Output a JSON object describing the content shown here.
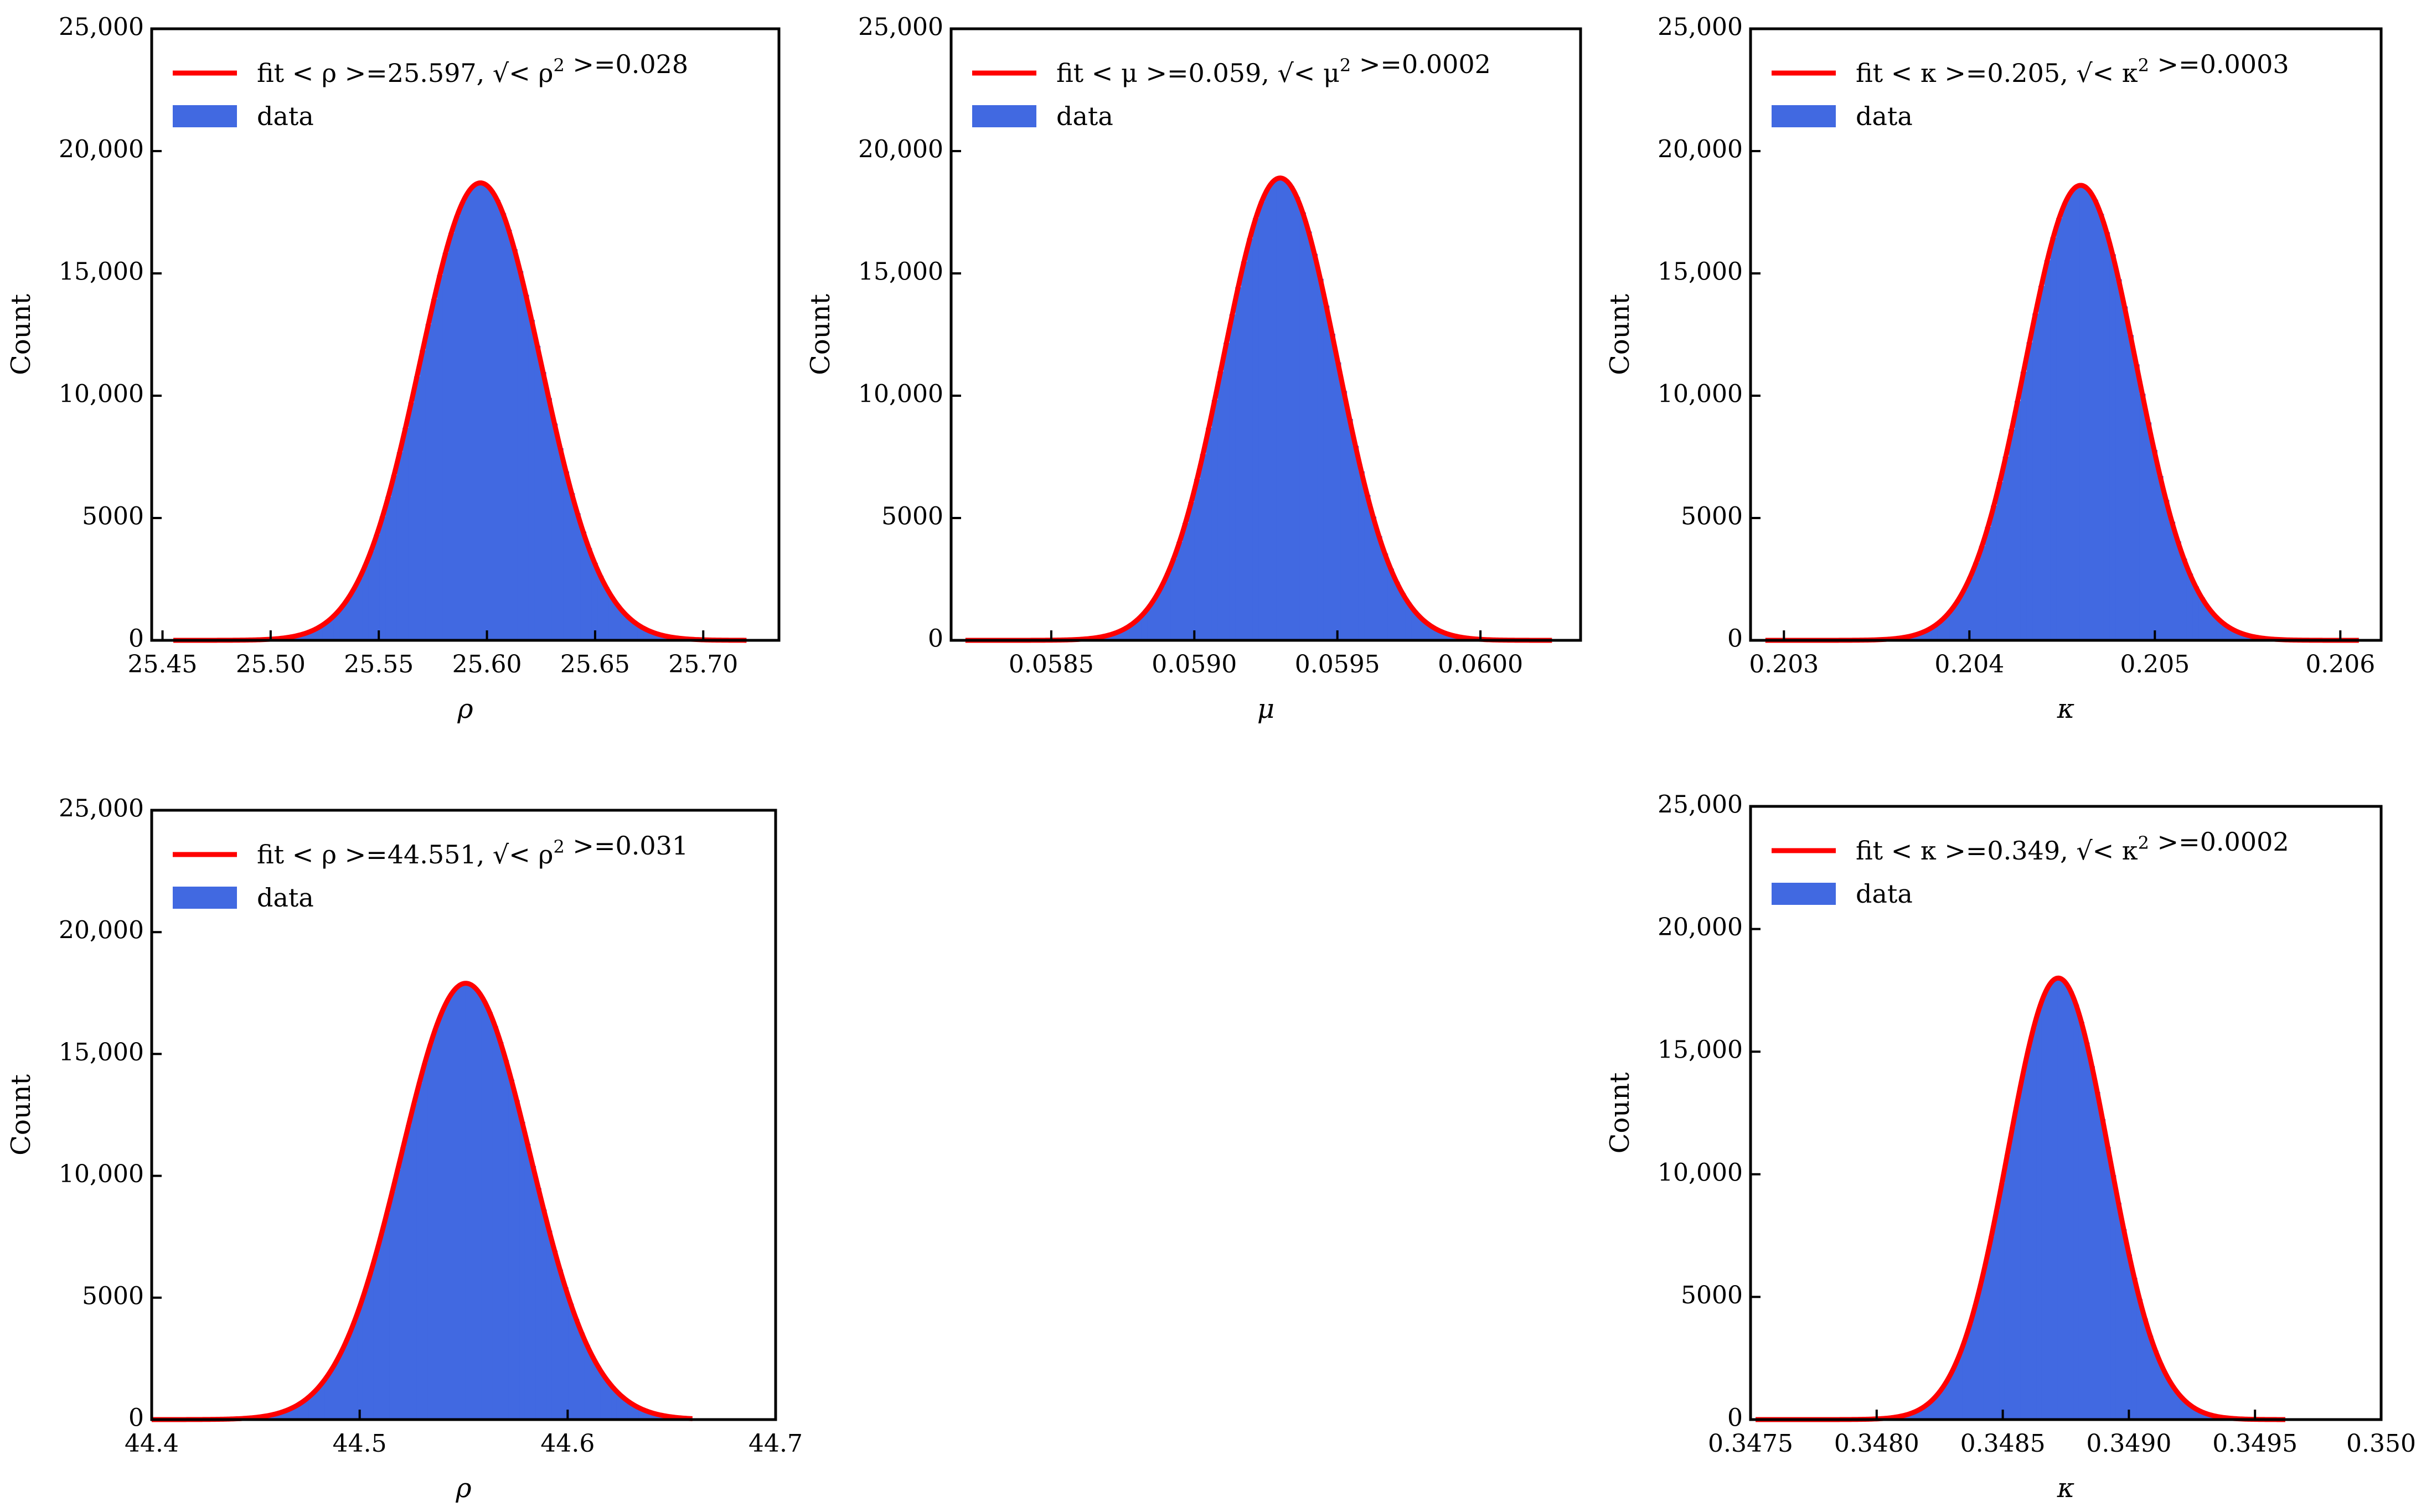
{
  "chart_data": [
    {
      "type": "bar",
      "xlabel": "ρ",
      "ylabel": "Count",
      "xlim": [
        25.445,
        25.735
      ],
      "ylim": [
        0,
        25000
      ],
      "xticks": [
        25.45,
        25.5,
        25.55,
        25.6,
        25.65,
        25.7
      ],
      "xtick_labels": [
        "25.45",
        "25.50",
        "25.55",
        "25.60",
        "25.65",
        "25.70"
      ],
      "yticks": [
        0,
        5000,
        10000,
        15000,
        20000,
        25000
      ],
      "ytick_labels": [
        "0",
        "5000",
        "10,000",
        "15,000",
        "20,000",
        "25,000"
      ],
      "histogram": {
        "mean": 25.597,
        "sigma": 0.028,
        "peak": 18700,
        "range": [
          25.455,
          25.72
        ],
        "bins": 100
      },
      "fit": {
        "mean": 25.597,
        "sigma": 0.028,
        "peak": 18700,
        "range": [
          25.455,
          25.72
        ]
      },
      "legend": {
        "placement": "top-left",
        "fit_label": "fit < ρ >=25.597, √< ρ² >=0.028",
        "data_label": "data"
      },
      "colors": {
        "fit": "#ff0000",
        "data": "#4169e1"
      },
      "grid": false
    },
    {
      "type": "bar",
      "xlabel": "μ",
      "ylabel": "Count",
      "xlim": [
        0.05815,
        0.06035
      ],
      "ylim": [
        0,
        25000
      ],
      "xticks": [
        0.0585,
        0.059,
        0.0595,
        0.06
      ],
      "xtick_labels": [
        "0.0585",
        "0.0590",
        "0.0595",
        "0.0600"
      ],
      "yticks": [
        0,
        5000,
        10000,
        15000,
        20000,
        25000
      ],
      "ytick_labels": [
        "0",
        "5000",
        "10,000",
        "15,000",
        "20,000",
        "25,000"
      ],
      "histogram": {
        "mean": 0.0593,
        "sigma": 0.0002,
        "peak": 18900,
        "range": [
          0.0582,
          0.06025
        ],
        "bins": 100
      },
      "fit": {
        "mean": 0.0593,
        "sigma": 0.0002,
        "peak": 18900,
        "range": [
          0.0582,
          0.06025
        ]
      },
      "legend": {
        "placement": "top-left",
        "fit_label": "fit < μ >=0.059, √< μ² >=0.0002",
        "data_label": "data"
      },
      "colors": {
        "fit": "#ff0000",
        "data": "#4169e1"
      },
      "grid": false
    },
    {
      "type": "bar",
      "xlabel": "κ",
      "ylabel": "Count",
      "xlim": [
        0.20282,
        0.20622
      ],
      "ylim": [
        0,
        25000
      ],
      "xticks": [
        0.203,
        0.204,
        0.205,
        0.206
      ],
      "xtick_labels": [
        "0.203",
        "0.204",
        "0.205",
        "0.206"
      ],
      "yticks": [
        0,
        5000,
        10000,
        15000,
        20000,
        25000
      ],
      "ytick_labels": [
        "0",
        "5000",
        "10,000",
        "15,000",
        "20,000",
        "25,000"
      ],
      "histogram": {
        "mean": 0.2046,
        "sigma": 0.0003,
        "peak": 18600,
        "range": [
          0.2029,
          0.2061
        ],
        "bins": 100
      },
      "fit": {
        "mean": 0.2046,
        "sigma": 0.0003,
        "peak": 18600,
        "range": [
          0.2029,
          0.2061
        ]
      },
      "legend": {
        "placement": "top-left",
        "fit_label": "fit < κ >=0.205, √< κ² >=0.0003",
        "data_label": "data"
      },
      "colors": {
        "fit": "#ff0000",
        "data": "#4169e1"
      },
      "grid": false
    },
    {
      "type": "bar",
      "xlabel": "ρ",
      "ylabel": "Count",
      "xlim": [
        44.4,
        44.7
      ],
      "ylim": [
        0,
        25000
      ],
      "xticks": [
        44.4,
        44.5,
        44.6,
        44.7
      ],
      "xtick_labels": [
        "44.4",
        "44.5",
        "44.6",
        "44.7"
      ],
      "yticks": [
        0,
        5000,
        10000,
        15000,
        20000,
        25000
      ],
      "ytick_labels": [
        "0",
        "5000",
        "10,000",
        "15,000",
        "20,000",
        "25,000"
      ],
      "histogram": {
        "mean": 44.551,
        "sigma": 0.031,
        "peak": 17900,
        "range": [
          44.4,
          44.66
        ],
        "bins": 100
      },
      "fit": {
        "mean": 44.551,
        "sigma": 0.031,
        "peak": 17900,
        "range": [
          44.4,
          44.66
        ]
      },
      "legend": {
        "placement": "top-left",
        "fit_label": "fit < ρ >=44.551, √< ρ² >=0.031",
        "data_label": "data"
      },
      "colors": {
        "fit": "#ff0000",
        "data": "#4169e1"
      },
      "grid": false
    },
    {
      "type": "bar",
      "xlabel": "κ",
      "ylabel": "Count",
      "xlim": [
        0.3475,
        0.35
      ],
      "ylim": [
        0,
        25000
      ],
      "xticks": [
        0.3475,
        0.348,
        0.3485,
        0.349,
        0.3495,
        0.35
      ],
      "xtick_labels": [
        "0.3475",
        "0.3480",
        "0.3485",
        "0.3490",
        "0.3495",
        "0.350"
      ],
      "yticks": [
        0,
        5000,
        10000,
        15000,
        20000,
        25000
      ],
      "ytick_labels": [
        "0",
        "5000",
        "10,000",
        "15,000",
        "20,000",
        "25,000"
      ],
      "histogram": {
        "mean": 0.34872,
        "sigma": 0.0002,
        "peak": 18000,
        "range": [
          0.34752,
          0.34962
        ],
        "bins": 100
      },
      "fit": {
        "mean": 0.34872,
        "sigma": 0.0002,
        "peak": 18000,
        "range": [
          0.34752,
          0.34962
        ]
      },
      "legend": {
        "placement": "top-left",
        "fit_label": "fit < κ >=0.349, √< κ² >=0.0002",
        "data_label": "data"
      },
      "colors": {
        "fit": "#ff0000",
        "data": "#4169e1"
      },
      "grid": false
    }
  ]
}
